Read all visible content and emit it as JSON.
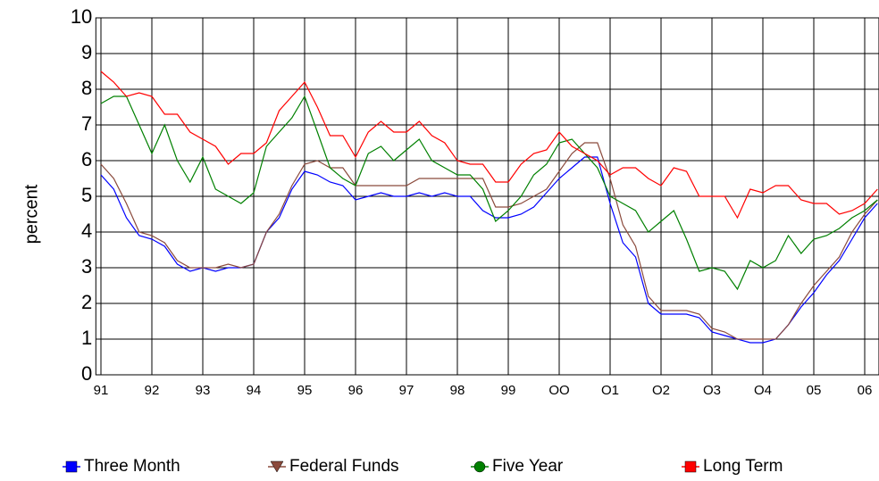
{
  "chart_data": {
    "type": "line",
    "y_label": "percent",
    "x": [
      1991,
      1991.25,
      1991.5,
      1991.75,
      1992,
      1992.25,
      1992.5,
      1992.75,
      1993,
      1993.25,
      1993.5,
      1993.75,
      1994,
      1994.25,
      1994.5,
      1994.75,
      1995,
      1995.25,
      1995.5,
      1995.75,
      1996,
      1996.25,
      1996.5,
      1996.75,
      1997,
      1997.25,
      1997.5,
      1997.75,
      1998,
      1998.25,
      1998.5,
      1998.75,
      1999,
      1999.25,
      1999.5,
      1999.75,
      2000,
      2000.25,
      2000.5,
      2000.75,
      2001,
      2001.25,
      2001.5,
      2001.75,
      2002,
      2002.25,
      2002.5,
      2002.75,
      2003,
      2003.25,
      2003.5,
      2003.75,
      2004,
      2004.25,
      2004.5,
      2004.75,
      2005,
      2005.25,
      2005.5,
      2005.75,
      2006,
      2006.25
    ],
    "series": [
      {
        "name": "Three Month",
        "color": "#0000ff",
        "marker": "square",
        "values": [
          5.6,
          5.2,
          4.4,
          3.9,
          3.8,
          3.6,
          3.1,
          2.9,
          3.0,
          2.9,
          3.0,
          3.0,
          3.1,
          4.0,
          4.4,
          5.2,
          5.7,
          5.6,
          5.4,
          5.3,
          4.9,
          5.0,
          5.1,
          5.0,
          5.0,
          5.1,
          5.0,
          5.1,
          5.0,
          5.0,
          4.6,
          4.4,
          4.4,
          4.5,
          4.7,
          5.1,
          5.5,
          5.8,
          6.1,
          6.1,
          4.8,
          3.7,
          3.3,
          2.0,
          1.7,
          1.7,
          1.7,
          1.6,
          1.2,
          1.1,
          1.0,
          0.9,
          0.9,
          1.0,
          1.4,
          1.9,
          2.3,
          2.8,
          3.2,
          3.8,
          4.4,
          4.8
        ]
      },
      {
        "name": "Federal Funds",
        "color": "#8b4a3c",
        "marker": "triangle",
        "values": [
          5.9,
          5.5,
          4.8,
          4.0,
          3.9,
          3.7,
          3.2,
          3.0,
          3.0,
          3.0,
          3.1,
          3.0,
          3.1,
          4.0,
          4.5,
          5.3,
          5.9,
          6.0,
          5.8,
          5.8,
          5.3,
          5.3,
          5.3,
          5.3,
          5.3,
          5.5,
          5.5,
          5.5,
          5.5,
          5.5,
          5.5,
          4.7,
          4.7,
          4.8,
          5.0,
          5.2,
          5.7,
          6.2,
          6.5,
          6.5,
          5.5,
          4.2,
          3.6,
          2.2,
          1.8,
          1.8,
          1.8,
          1.7,
          1.3,
          1.2,
          1.0,
          1.0,
          1.0,
          1.0,
          1.4,
          2.0,
          2.5,
          2.9,
          3.3,
          4.0,
          4.5,
          4.9
        ]
      },
      {
        "name": "Five Year",
        "color": "#008000",
        "marker": "circle",
        "values": [
          7.6,
          7.8,
          7.8,
          7.0,
          6.2,
          7.0,
          6.0,
          5.4,
          6.1,
          5.2,
          5.0,
          4.8,
          5.1,
          6.4,
          6.8,
          7.2,
          7.8,
          6.8,
          5.8,
          5.5,
          5.3,
          6.2,
          6.4,
          6.0,
          6.3,
          6.6,
          6.0,
          5.8,
          5.6,
          5.6,
          5.2,
          4.3,
          4.6,
          5.0,
          5.6,
          5.9,
          6.5,
          6.6,
          6.2,
          5.8,
          5.0,
          4.8,
          4.6,
          4.0,
          4.3,
          4.6,
          3.8,
          2.9,
          3.0,
          2.9,
          2.4,
          3.2,
          3.0,
          3.2,
          3.9,
          3.4,
          3.8,
          3.9,
          4.1,
          4.4,
          4.6,
          4.9
        ]
      },
      {
        "name": "Long Term",
        "color": "#ff0000",
        "marker": "square",
        "values": [
          8.5,
          8.2,
          7.8,
          7.9,
          7.8,
          7.3,
          7.3,
          6.8,
          6.6,
          6.4,
          5.9,
          6.2,
          6.2,
          6.5,
          7.4,
          7.8,
          8.2,
          7.5,
          6.7,
          6.7,
          6.1,
          6.8,
          7.1,
          6.8,
          6.8,
          7.1,
          6.7,
          6.5,
          6.0,
          5.9,
          5.9,
          5.4,
          5.4,
          5.9,
          6.2,
          6.3,
          6.8,
          6.4,
          6.2,
          6.0,
          5.6,
          5.8,
          5.8,
          5.5,
          5.3,
          5.8,
          5.7,
          5.0,
          5.0,
          5.0,
          4.4,
          5.2,
          5.1,
          5.3,
          5.3,
          4.9,
          4.8,
          4.8,
          4.5,
          4.6,
          4.8,
          5.2
        ]
      }
    ],
    "xlim": [
      1990.9,
      2006.28
    ],
    "xticks": [
      {
        "value": 1991,
        "label": "91"
      },
      {
        "value": 1992,
        "label": "92"
      },
      {
        "value": 1993,
        "label": "93"
      },
      {
        "value": 1994,
        "label": "94"
      },
      {
        "value": 1995,
        "label": "95"
      },
      {
        "value": 1996,
        "label": "96"
      },
      {
        "value": 1997,
        "label": "97"
      },
      {
        "value": 1998,
        "label": "98"
      },
      {
        "value": 1999,
        "label": "99"
      },
      {
        "value": 2000,
        "label": "OO"
      },
      {
        "value": 2001,
        "label": "O1"
      },
      {
        "value": 2002,
        "label": "O2"
      },
      {
        "value": 2003,
        "label": "O3"
      },
      {
        "value": 2004,
        "label": "O4"
      },
      {
        "value": 2005,
        "label": "05"
      },
      {
        "value": 2006,
        "label": "06"
      }
    ],
    "ylim": [
      0,
      10
    ],
    "yticks": [
      0,
      1,
      2,
      3,
      4,
      5,
      6,
      7,
      8,
      9,
      10
    ],
    "grid": true
  }
}
